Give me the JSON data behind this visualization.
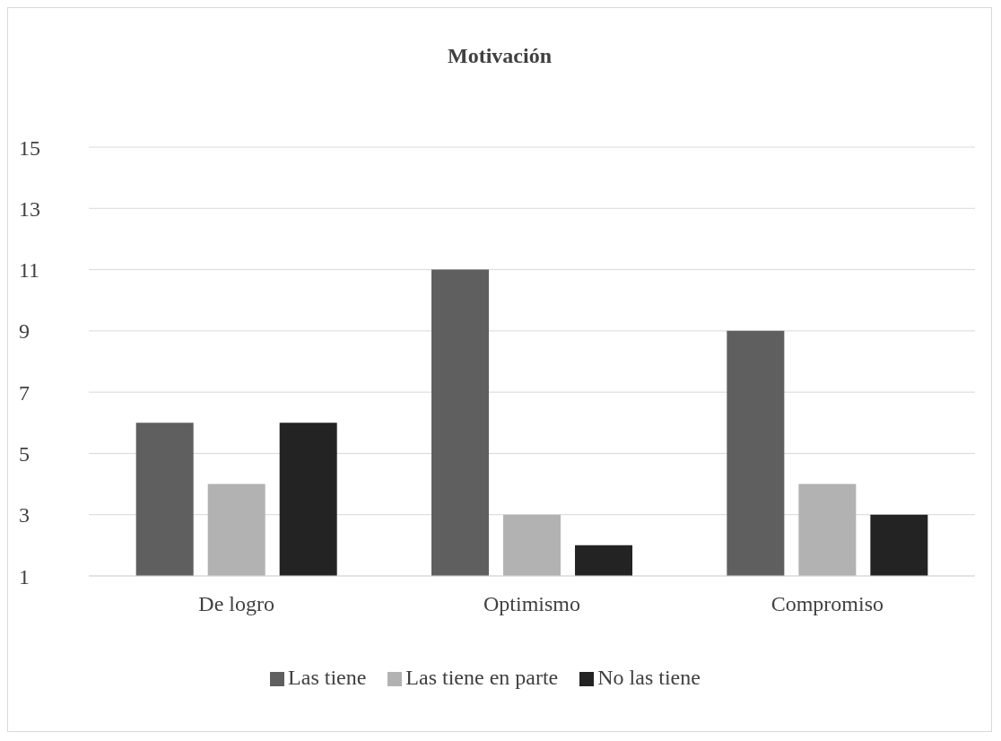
{
  "chart_data": {
    "type": "bar",
    "title": "Motivación",
    "categories": [
      "De logro",
      "Optimismo",
      "Compromiso"
    ],
    "series": [
      {
        "name": "Las tiene",
        "color": "#5f5f5f",
        "values": [
          6,
          11,
          9
        ]
      },
      {
        "name": "Las tiene en parte",
        "color": "#b2b2b2",
        "values": [
          4,
          3,
          4
        ]
      },
      {
        "name": "No las tiene",
        "color": "#232323",
        "values": [
          6,
          2,
          3
        ]
      }
    ],
    "ylim": [
      1,
      15
    ],
    "yticks": [
      1,
      3,
      5,
      7,
      9,
      11,
      13,
      15
    ],
    "grid": "y",
    "legend": "bottom"
  }
}
